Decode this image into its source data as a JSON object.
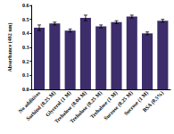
{
  "chart_data": {
    "type": "bar",
    "y_label": "Absorbance (492 nm)",
    "categories": [
      "No additives",
      "Sorbitol (0.25 M)",
      "Glycerol (1 M)",
      "Trehalose (0.04 M)",
      "Trehalose (0.25 M)",
      "Trehalose (1 M)",
      "Sucrose (0.25 M)",
      "Sucrose (1 M)",
      "BSA (0.5%)"
    ],
    "values": [
      0.44,
      0.47,
      0.42,
      0.51,
      0.45,
      0.48,
      0.52,
      0.4,
      0.49
    ],
    "errors": [
      0.02,
      0.01,
      0.01,
      0.02,
      0.01,
      0.01,
      0.01,
      0.01,
      0.01
    ],
    "color": "#3d2d6b",
    "ylim": [
      0,
      0.6
    ],
    "yticks": [
      {
        "value": 0,
        "label": "0.0"
      },
      0.1,
      0.2,
      0.3,
      0.4,
      0.5,
      0.6
    ],
    "grid": false
  }
}
